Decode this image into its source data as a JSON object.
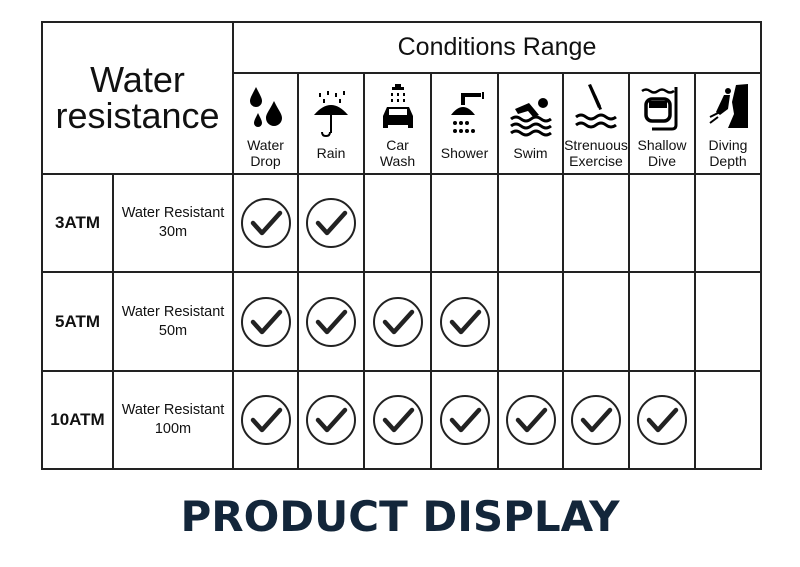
{
  "header": {
    "title_line1": "Water",
    "title_line2": "resistance",
    "conditions_title": "Conditions Range"
  },
  "conditions": [
    {
      "icon": "water-drop-icon",
      "line1": "Water",
      "line2": "Drop"
    },
    {
      "icon": "rain-umbrella-icon",
      "line1": "Rain",
      "line2": ""
    },
    {
      "icon": "car-wash-icon",
      "line1": "Car",
      "line2": "Wash"
    },
    {
      "icon": "shower-icon",
      "line1": "Shower",
      "line2": ""
    },
    {
      "icon": "swim-icon",
      "line1": "Swim",
      "line2": ""
    },
    {
      "icon": "strenuous-exercise-icon",
      "line1": "Strenuous",
      "line2": "Exercise"
    },
    {
      "icon": "shallow-dive-icon",
      "line1": "Shallow",
      "line2": "Dive"
    },
    {
      "icon": "diving-depth-icon",
      "line1": "Diving",
      "line2": "Depth"
    }
  ],
  "rows": [
    {
      "atm": "3ATM",
      "line1": "Water Resistant",
      "line2": "30m",
      "checks": [
        true,
        true,
        false,
        false,
        false,
        false,
        false,
        false
      ]
    },
    {
      "atm": "5ATM",
      "line1": "Water Resistant",
      "line2": "50m",
      "checks": [
        true,
        true,
        true,
        true,
        false,
        false,
        false,
        false
      ]
    },
    {
      "atm": "10ATM",
      "line1": "Water Resistant",
      "line2": "100m",
      "checks": [
        true,
        true,
        true,
        true,
        true,
        true,
        true,
        false
      ]
    }
  ],
  "footer": {
    "title": "PRODUCT DISPLAY"
  },
  "colors": {
    "footer_text": "#13263a",
    "lines": "#222222"
  }
}
